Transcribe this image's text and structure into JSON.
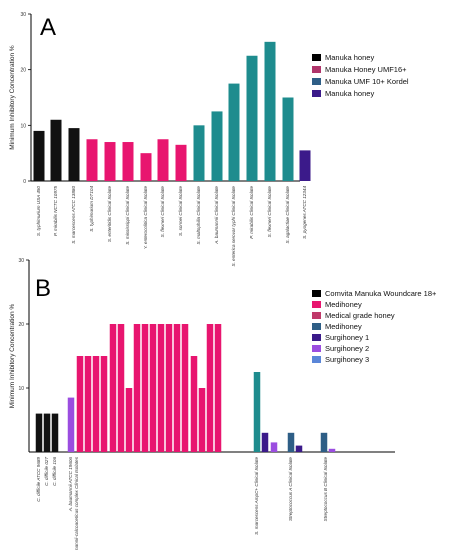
{
  "chart_data": [
    {
      "type": "bar",
      "panel_letter": "A",
      "ylabel": "Minimum Inhibitory Concentration %",
      "ylim": [
        0,
        30
      ],
      "yticks": [
        0,
        10,
        20,
        30
      ],
      "legend": [
        {
          "name": "Manuka honey",
          "color": "#000000"
        },
        {
          "name": "Manuka Honey UMF16+",
          "color": "#b0356b"
        },
        {
          "name": "Manuka UMF 10+ Kordel",
          "color": "#2e5e86"
        },
        {
          "name": "Manuka honey",
          "color": "#3b1a8a"
        }
      ],
      "categories": [
        "S. typhimurium USA 450",
        "P. mirabilis NCTC 10975",
        "S. marcescens ATCC 13880",
        "S. typhimurium DT104",
        "S. enteritidis Clinical Isolate",
        "S. mississippi Clinical Isolate",
        "Y. enterocolitica Clinical Isolate",
        "S. flexneri Clinical Isolate",
        "S. sonnei Clinical Isolate",
        "S. maltophilia Clinical Isolate",
        "A. baumannii Clinical Isolate",
        "S. enterica serovar typhi Clinical Isolate",
        "P. mirabilis Clinical Isolate",
        "S. flexneri Clinical Isolate",
        "S. agalactiae Clinical Isolate",
        "S. pyogenes ATCC 12344"
      ],
      "values": [
        9,
        11,
        9.5,
        7.5,
        7,
        7,
        5,
        7.5,
        6.5,
        10,
        12.5,
        17.5,
        22.5,
        25,
        15,
        5.5
      ],
      "colors": [
        "#111111",
        "#111111",
        "#111111",
        "#e8156f",
        "#e8156f",
        "#e8156f",
        "#e8156f",
        "#e8156f",
        "#e8156f",
        "#1e8c8e",
        "#1e8c8e",
        "#1e8c8e",
        "#1e8c8e",
        "#1e8c8e",
        "#1e8c8e",
        "#3b1a8a"
      ]
    },
    {
      "type": "bar",
      "panel_letter": "B",
      "ylabel": "Minimum Inhibitory Concentration %",
      "ylim": [
        0,
        30
      ],
      "yticks": [
        10,
        20,
        30
      ],
      "legend": [
        {
          "name": "Comvita Manuka Woundcare 18+",
          "color": "#000000"
        },
        {
          "name": "Medihoney",
          "color": "#e8156f"
        },
        {
          "name": "Medical grade honey",
          "color": "#c0396a"
        },
        {
          "name": "Medihoney",
          "color": "#2e5e86"
        },
        {
          "name": "Surgihoney 1",
          "color": "#3b1a8a"
        },
        {
          "name": "Surgihoney 2",
          "color": "#9b4de0"
        },
        {
          "name": "Surgihoney 3",
          "color": "#5a86d8"
        }
      ],
      "group_labels": [
        "C. difficile ATCC 9689",
        "C. difficile 027",
        "C. difficile 106",
        "A. baumannii ATCC 19606",
        "A. baumannii-calcoaceticus complex Clinical Isolates",
        "S. marcescens AmpC+ Clinical Isolate",
        "Streptococcus A Clinical Isolate",
        "Streptococcus B Clinical Isolate"
      ],
      "values": [
        6,
        6,
        6,
        8.5,
        15,
        15,
        15,
        15,
        20,
        20,
        10,
        20,
        20,
        20,
        20,
        20,
        20,
        20,
        15,
        10,
        20,
        20,
        12.5,
        3,
        1.5,
        3,
        1,
        3,
        0.5
      ],
      "colors": [
        "#111111",
        "#111111",
        "#111111",
        "#9b4de0",
        "#e8156f",
        "#e8156f",
        "#e8156f",
        "#e8156f",
        "#e8156f",
        "#e8156f",
        "#e8156f",
        "#e8156f",
        "#e8156f",
        "#e8156f",
        "#e8156f",
        "#e8156f",
        "#e8156f",
        "#e8156f",
        "#e8156f",
        "#e8156f",
        "#e8156f",
        "#e8156f",
        "#1e8c8e",
        "#3b1a8a",
        "#9b4de0",
        "#2e5e86",
        "#3b1a8a",
        "#2e5e86",
        "#9b4de0"
      ]
    }
  ]
}
